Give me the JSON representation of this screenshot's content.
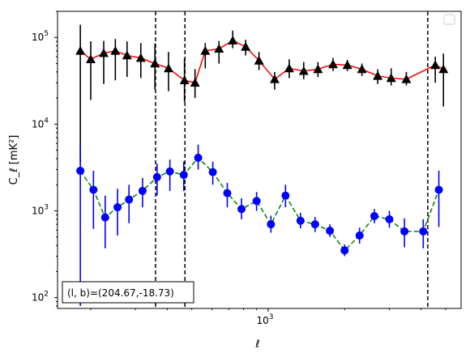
{
  "chart_data": {
    "type": "scatter",
    "title": "",
    "xlabel": "ℓ",
    "ylabel": "C_ℓ  [mK²]",
    "x_scale": "log",
    "y_scale": "log",
    "xlim": [
      148,
      5750
    ],
    "ylim": [
      75,
      200000
    ],
    "grid": false,
    "legend": {
      "placement": "top-right",
      "entries": []
    },
    "x_ticks": [
      {
        "value": 1000,
        "base": "10",
        "exp": "3"
      }
    ],
    "y_ticks": [
      {
        "value": 100,
        "base": "10",
        "exp": "2"
      },
      {
        "value": 1000,
        "base": "10",
        "exp": "3"
      },
      {
        "value": 10000,
        "base": "10",
        "exp": "4"
      },
      {
        "value": 100000,
        "base": "10",
        "exp": "5"
      }
    ],
    "annotation": "(l, b)=(204.67,-18.73)",
    "vlines": [
      360,
      470,
      4250
    ],
    "series": [
      {
        "marker": "triangle",
        "color": "#000000",
        "line_color": "#ff0000",
        "line_style": "solid",
        "error_color": "#000000",
        "points": [
          {
            "x": 182,
            "y": 70000,
            "lo": 3500,
            "hi": 140000
          },
          {
            "x": 200,
            "y": 56000,
            "lo": 19000,
            "hi": 90000
          },
          {
            "x": 225,
            "y": 66000,
            "lo": 29000,
            "hi": 91000
          },
          {
            "x": 250,
            "y": 70000,
            "lo": 32000,
            "hi": 96000
          },
          {
            "x": 278,
            "y": 62000,
            "lo": 35000,
            "hi": 90000
          },
          {
            "x": 315,
            "y": 58000,
            "lo": 34000,
            "hi": 86000
          },
          {
            "x": 358,
            "y": 50000,
            "lo": 25000,
            "hi": 85000
          },
          {
            "x": 405,
            "y": 44000,
            "lo": 24000,
            "hi": 68000
          },
          {
            "x": 468,
            "y": 32000,
            "lo": 18000,
            "hi": 57000
          },
          {
            "x": 515,
            "y": 30000,
            "lo": 20000,
            "hi": 43000
          },
          {
            "x": 565,
            "y": 70000,
            "lo": 44000,
            "hi": 86000
          },
          {
            "x": 640,
            "y": 74000,
            "lo": 50000,
            "hi": 91000
          },
          {
            "x": 725,
            "y": 92000,
            "lo": 75000,
            "hi": 120000
          },
          {
            "x": 815,
            "y": 78000,
            "lo": 62000,
            "hi": 94000
          },
          {
            "x": 920,
            "y": 54000,
            "lo": 42000,
            "hi": 68000
          },
          {
            "x": 1060,
            "y": 33000,
            "lo": 25000,
            "hi": 40000
          },
          {
            "x": 1210,
            "y": 44000,
            "lo": 34000,
            "hi": 56000
          },
          {
            "x": 1380,
            "y": 41000,
            "lo": 33000,
            "hi": 52000
          },
          {
            "x": 1570,
            "y": 43000,
            "lo": 35000,
            "hi": 52000
          },
          {
            "x": 1800,
            "y": 49000,
            "lo": 41000,
            "hi": 58000
          },
          {
            "x": 2050,
            "y": 48000,
            "lo": 41000,
            "hi": 55000
          },
          {
            "x": 2340,
            "y": 43000,
            "lo": 36000,
            "hi": 50000
          },
          {
            "x": 2700,
            "y": 36000,
            "lo": 29000,
            "hi": 43000
          },
          {
            "x": 3050,
            "y": 34000,
            "lo": 28000,
            "hi": 44000
          },
          {
            "x": 3500,
            "y": 33000,
            "lo": 28000,
            "hi": 40000
          },
          {
            "x": 4550,
            "y": 48000,
            "lo": 30000,
            "hi": 60000
          },
          {
            "x": 4900,
            "y": 43000,
            "lo": 16000,
            "hi": 65000
          }
        ]
      },
      {
        "marker": "circle",
        "color": "#0000ff",
        "line_color": "#008000",
        "line_style": "dashed",
        "error_color": "#0000ff",
        "points": [
          {
            "x": 182,
            "y": 2900,
            "lo": 80,
            "hi": 5800
          },
          {
            "x": 205,
            "y": 1750,
            "lo": 620,
            "hi": 2900
          },
          {
            "x": 228,
            "y": 840,
            "lo": 370,
            "hi": 1500
          },
          {
            "x": 255,
            "y": 1100,
            "lo": 520,
            "hi": 1800
          },
          {
            "x": 283,
            "y": 1350,
            "lo": 720,
            "hi": 2000
          },
          {
            "x": 320,
            "y": 1700,
            "lo": 1100,
            "hi": 2400
          },
          {
            "x": 365,
            "y": 2450,
            "lo": 1500,
            "hi": 3500
          },
          {
            "x": 410,
            "y": 2850,
            "lo": 1700,
            "hi": 3900
          },
          {
            "x": 465,
            "y": 2600,
            "lo": 1700,
            "hi": 3700
          },
          {
            "x": 530,
            "y": 4100,
            "lo": 3000,
            "hi": 5800
          },
          {
            "x": 605,
            "y": 2800,
            "lo": 2000,
            "hi": 3700
          },
          {
            "x": 690,
            "y": 1600,
            "lo": 1100,
            "hi": 2100
          },
          {
            "x": 785,
            "y": 1050,
            "lo": 800,
            "hi": 1400
          },
          {
            "x": 900,
            "y": 1300,
            "lo": 1000,
            "hi": 1650
          },
          {
            "x": 1025,
            "y": 700,
            "lo": 560,
            "hi": 880
          },
          {
            "x": 1170,
            "y": 1500,
            "lo": 1100,
            "hi": 2000
          },
          {
            "x": 1340,
            "y": 770,
            "lo": 630,
            "hi": 950
          },
          {
            "x": 1530,
            "y": 700,
            "lo": 570,
            "hi": 850
          },
          {
            "x": 1750,
            "y": 590,
            "lo": 500,
            "hi": 700
          },
          {
            "x": 2000,
            "y": 350,
            "lo": 300,
            "hi": 410
          },
          {
            "x": 2290,
            "y": 520,
            "lo": 420,
            "hi": 640
          },
          {
            "x": 2620,
            "y": 870,
            "lo": 720,
            "hi": 1050
          },
          {
            "x": 3000,
            "y": 800,
            "lo": 640,
            "hi": 1000
          },
          {
            "x": 3440,
            "y": 580,
            "lo": 380,
            "hi": 820
          },
          {
            "x": 4080,
            "y": 580,
            "lo": 370,
            "hi": 800
          },
          {
            "x": 4700,
            "y": 1750,
            "lo": 650,
            "hi": 2900
          }
        ]
      }
    ]
  }
}
